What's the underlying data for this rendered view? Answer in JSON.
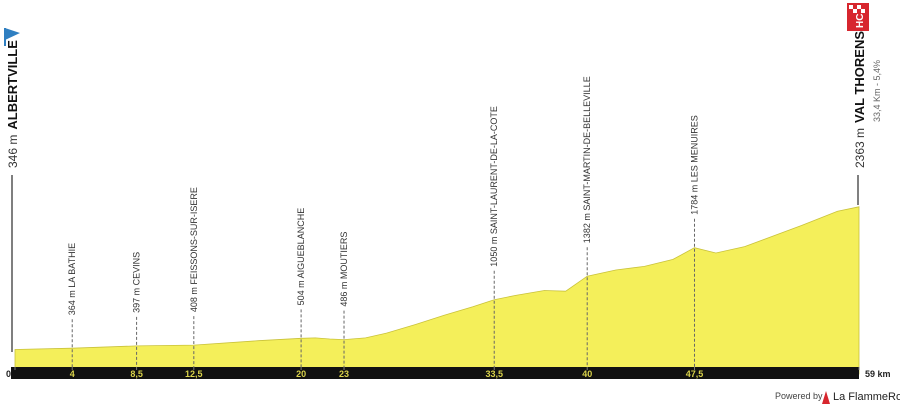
{
  "chart_data": {
    "type": "area",
    "start": {
      "elevation_label": "346 m",
      "name": "ALBERTVILLE"
    },
    "finish": {
      "elevation_label": "2363 m",
      "name": "VAL THORENS",
      "climb": "33,4 Km - 5,4%",
      "category": "HC"
    },
    "x": [
      0,
      4,
      8.5,
      12.5,
      17,
      20,
      21,
      22,
      23,
      24.5,
      26,
      28,
      30,
      32,
      33.5,
      35,
      37,
      38.5,
      40,
      42,
      44,
      46,
      47.5,
      49,
      51,
      53,
      55,
      57.5,
      59
    ],
    "values": [
      346,
      364,
      397,
      408,
      470,
      504,
      510,
      495,
      486,
      510,
      580,
      700,
      830,
      950,
      1050,
      1110,
      1180,
      1170,
      1382,
      1470,
      1520,
      1620,
      1784,
      1710,
      1800,
      1950,
      2100,
      2300,
      2363
    ],
    "color": "#f4ef5a",
    "xlim": [
      0,
      59
    ],
    "xticks": [
      0,
      4,
      {
        "value": 8.5,
        "label": "8,5"
      },
      {
        "value": 12.5,
        "label": "12,5"
      },
      20,
      23,
      {
        "value": 33.5,
        "label": "33,5"
      },
      40,
      {
        "value": 47.5,
        "label": "47,5"
      },
      {
        "value": 59,
        "label": "59 km"
      }
    ],
    "ylim": [
      0,
      2600
    ],
    "waypoints": [
      {
        "x": 4,
        "label": "364 m LA BATHIE"
      },
      {
        "x": 8.5,
        "label": "397 m CEVINS"
      },
      {
        "x": 12.5,
        "label": "408 m FEISSONS-SUR-ISERE"
      },
      {
        "x": 20,
        "label": "504 m AIGUEBLANCHE"
      },
      {
        "x": 23,
        "label": "486 m MOUTIERS"
      },
      {
        "x": 33.5,
        "label": "1050 m SAINT-LAURENT-DE-LA-COTE"
      },
      {
        "x": 40,
        "label": "1382 m SAINT-MARTIN-DE-BELLEVILLE"
      },
      {
        "x": 47.5,
        "label": "1784 m LES MENUIRES"
      }
    ]
  },
  "footer": {
    "powered_by": "Powered by",
    "brand": "La FlammeRouge"
  }
}
